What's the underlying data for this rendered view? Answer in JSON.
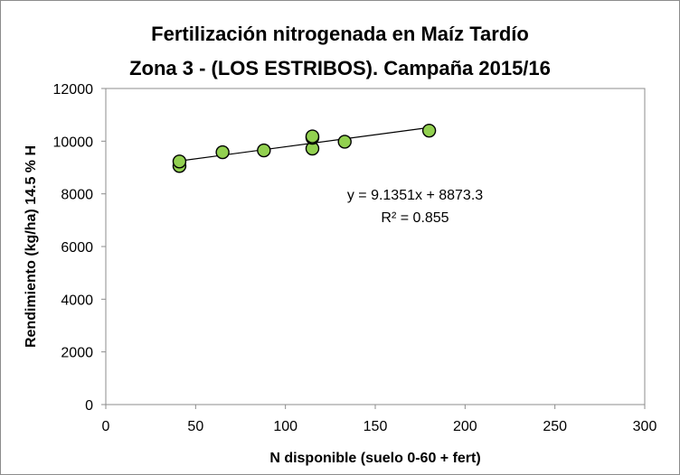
{
  "chart_data": {
    "type": "scatter",
    "title_line1": "Fertilización nitrogenada en Maíz Tardío",
    "title_line2": "Zona 3 - (LOS ESTRIBOS). Campaña 2015/16",
    "xlabel": "N disponible  (suelo 0-60 + fert)",
    "ylabel": "Rendimiento (kg/ha) 14.5 % H",
    "xlim": [
      0,
      300
    ],
    "ylim": [
      0,
      12000
    ],
    "x_ticks": [
      "0",
      "50",
      "100",
      "150",
      "200",
      "250",
      "300"
    ],
    "y_ticks": [
      "0",
      "2000",
      "4000",
      "6000",
      "8000",
      "10000",
      "12000"
    ],
    "grid": false,
    "points": [
      {
        "x": 41,
        "y": 9060
      },
      {
        "x": 41,
        "y": 9230
      },
      {
        "x": 65,
        "y": 9580
      },
      {
        "x": 88,
        "y": 9650
      },
      {
        "x": 115,
        "y": 9720
      },
      {
        "x": 115,
        "y": 10130
      },
      {
        "x": 115,
        "y": 10180
      },
      {
        "x": 133,
        "y": 9980
      },
      {
        "x": 180,
        "y": 10400
      }
    ],
    "trendline": {
      "slope": 9.1351,
      "intercept": 8873.3,
      "x_range": [
        41,
        180
      ],
      "equation_text": "y = 9.1351x + 8873.3",
      "r2_text": "R² = 0.855"
    },
    "colors": {
      "marker_fill": "#92d050",
      "marker_stroke": "#000000",
      "trendline": "#000000",
      "axis": "#8c8c8c"
    }
  }
}
